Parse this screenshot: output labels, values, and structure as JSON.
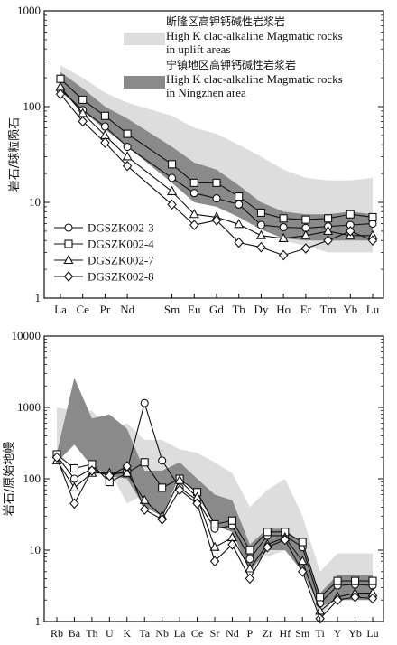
{
  "chart_data": [
    {
      "type": "line",
      "yscale": "log",
      "ylim": [
        1,
        1000
      ],
      "y_ticks": [
        "1",
        "10",
        "100",
        "1000"
      ],
      "ylabel": "岩石/球粒陨石",
      "categories": [
        "La",
        "Ce",
        "Pr",
        "Nd",
        "Sm",
        "Eu",
        "Gd",
        "Tb",
        "Dy",
        "Ho",
        "Er",
        "Tm",
        "Yb",
        "Lu"
      ],
      "x_positions": [
        0,
        1,
        2,
        3,
        5,
        6,
        7,
        8,
        9,
        10,
        11,
        12,
        13,
        14
      ],
      "bands": [
        {
          "label_cn": "断隆区高钾钙碱性岩浆岩",
          "label_en": "High K clac-alkaline Magmatic rocks",
          "label_en2": "in uplift areas",
          "color": "#dddddd",
          "upper": [
            270,
            200,
            140,
            110,
            80,
            60,
            52,
            40,
            30,
            22,
            18,
            17,
            17,
            18
          ],
          "lower": [
            175,
            130,
            85,
            60,
            30,
            18,
            14,
            9,
            6,
            4,
            3.5,
            3,
            3,
            3
          ]
        },
        {
          "label_cn": "宁镇地区高钾钙碱性岩浆岩",
          "label_en": "High K clac-alkaline Magmatic rocks",
          "label_en2": "in Ningzhen area",
          "color": "#8a8a8a",
          "upper": [
            230,
            155,
            100,
            75,
            38,
            26,
            22,
            15,
            10,
            8,
            7.5,
            7.5,
            8,
            7.5
          ],
          "lower": [
            145,
            90,
            58,
            38,
            16,
            10,
            9,
            7,
            5.2,
            4.2,
            4,
            4,
            4,
            4
          ]
        }
      ],
      "series": [
        {
          "name": "DGSZK002-3",
          "marker": "circle",
          "values": [
            150,
            92,
            62,
            38,
            18,
            12.5,
            11,
            9.5,
            5.8,
            5.5,
            5.4,
            5.6,
            5.8,
            6.0
          ]
        },
        {
          "name": "DGSZK002-4",
          "marker": "square",
          "values": [
            195,
            118,
            80,
            52,
            25,
            16,
            16,
            11.5,
            7.8,
            6.8,
            6.6,
            6.8,
            7.5,
            7.0
          ]
        },
        {
          "name": "DGSZK002-7",
          "marker": "triangle",
          "values": [
            160,
            85,
            50,
            30,
            13,
            7.5,
            7.0,
            5.9,
            4.5,
            4.2,
            4.5,
            5.0,
            4.5,
            4.5
          ]
        },
        {
          "name": "DGSZK002-8",
          "marker": "diamond",
          "values": [
            135,
            70,
            42,
            24,
            9.5,
            5.8,
            6.5,
            3.8,
            3.4,
            2.8,
            3.3,
            4.0,
            5.0,
            4.0
          ]
        }
      ]
    },
    {
      "type": "line",
      "yscale": "log",
      "ylim": [
        1,
        10000
      ],
      "y_ticks": [
        "1",
        "10",
        "100",
        "1000",
        "10000"
      ],
      "ylabel": "岩石/原始地幔",
      "categories": [
        "Rb",
        "Ba",
        "Th",
        "U",
        "K",
        "Ta",
        "Nb",
        "La",
        "Ce",
        "Sr",
        "Nd",
        "P",
        "Zr",
        "Hf",
        "Sm",
        "Ti",
        "Y",
        "Yb",
        "Lu"
      ],
      "bands": [
        {
          "color": "#dddddd",
          "upper": [
            1000,
            900,
            900,
            500,
            600,
            350,
            350,
            260,
            230,
            170,
            120,
            40,
            70,
            100,
            30,
            5,
            9,
            9,
            9
          ],
          "lower": [
            150,
            400,
            420,
            130,
            45,
            60,
            40,
            130,
            80,
            45,
            35,
            12,
            8,
            10,
            6,
            1.1,
            2.5,
            2.5,
            2.5
          ]
        },
        {
          "color": "#8a8a8a",
          "upper": [
            230,
            2600,
            700,
            800,
            500,
            130,
            130,
            170,
            100,
            60,
            50,
            12,
            20,
            20,
            12,
            2.5,
            4.5,
            4.5,
            4.5
          ],
          "lower": [
            170,
            300,
            150,
            110,
            100,
            40,
            30,
            110,
            60,
            22,
            18,
            5,
            10,
            10,
            5,
            1.6,
            2.0,
            2.0,
            2.0
          ]
        }
      ],
      "series": [
        {
          "name": "DGSZK002-3",
          "marker": "circle",
          "values": [
            210,
            100,
            140,
            110,
            130,
            1150,
            180,
            75,
            50,
            20,
            22,
            7.5,
            16,
            16,
            11,
            1.8,
            3.2,
            3.3,
            3.2
          ]
        },
        {
          "name": "DGSZK002-4",
          "marker": "square",
          "values": [
            220,
            140,
            160,
            90,
            120,
            170,
            75,
            100,
            65,
            23,
            26,
            10,
            18,
            18,
            13,
            2.2,
            3.7,
            3.7,
            3.7
          ]
        },
        {
          "name": "DGSZK002-7",
          "marker": "triangle",
          "values": [
            180,
            75,
            120,
            120,
            120,
            50,
            30,
            95,
            55,
            11,
            15,
            5.5,
            12,
            15,
            7,
            1.4,
            2.2,
            2.5,
            2.5
          ]
        },
        {
          "name": "DGSZK002-8",
          "marker": "diamond",
          "values": [
            200,
            45,
            130,
            110,
            150,
            37,
            27,
            70,
            45,
            7,
            12,
            4.0,
            11,
            14,
            5,
            1.1,
            2.0,
            2.2,
            2.1
          ]
        }
      ]
    }
  ]
}
